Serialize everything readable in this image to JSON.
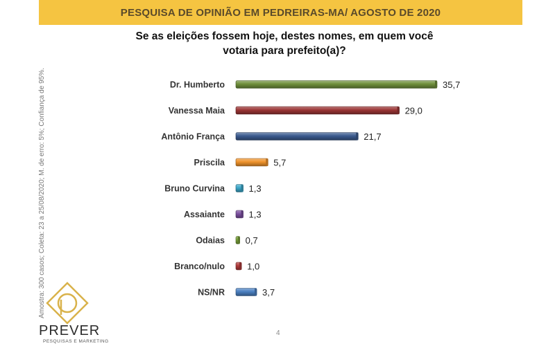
{
  "header": {
    "title": "PESQUISA DE OPINIÃO EM PEDREIRAS-MA/ AGOSTO DE 2020",
    "question": "Se as eleições fossem hoje, destes nomes, em quem você votaria para prefeito(a)?"
  },
  "side_note": "Amostra: 300 casos; Coleta: 23 a 25/08/2020; M. de erro: 5%; Confiança de 95%.",
  "logo": {
    "word": "PREVER",
    "sub": "PESQUISAS E MARKETING"
  },
  "page_number": "4",
  "chart_data": {
    "type": "bar",
    "orientation": "horizontal",
    "categories": [
      "Dr. Humberto",
      "Vanessa Maia",
      "Antônio França",
      "Priscila",
      "Bruno Curvina",
      "Assaiante",
      "Odaias",
      "Branco/nulo",
      "NS/NR"
    ],
    "values": [
      35.7,
      29.0,
      21.7,
      5.7,
      1.3,
      1.3,
      0.7,
      1.0,
      3.7
    ],
    "value_labels": [
      "35,7",
      "29,0",
      "21,7",
      "5,7",
      "1,3",
      "1,3",
      "0,7",
      "1,0",
      "3,7"
    ],
    "colors": [
      "#6e8f3a",
      "#9b3535",
      "#3a5a8f",
      "#f0932b",
      "#3aa6c8",
      "#7a4e9e",
      "#7aa33a",
      "#b03a3a",
      "#4a7fc1"
    ],
    "xlim": [
      0,
      35.7
    ],
    "grid": false,
    "legend": "none"
  }
}
